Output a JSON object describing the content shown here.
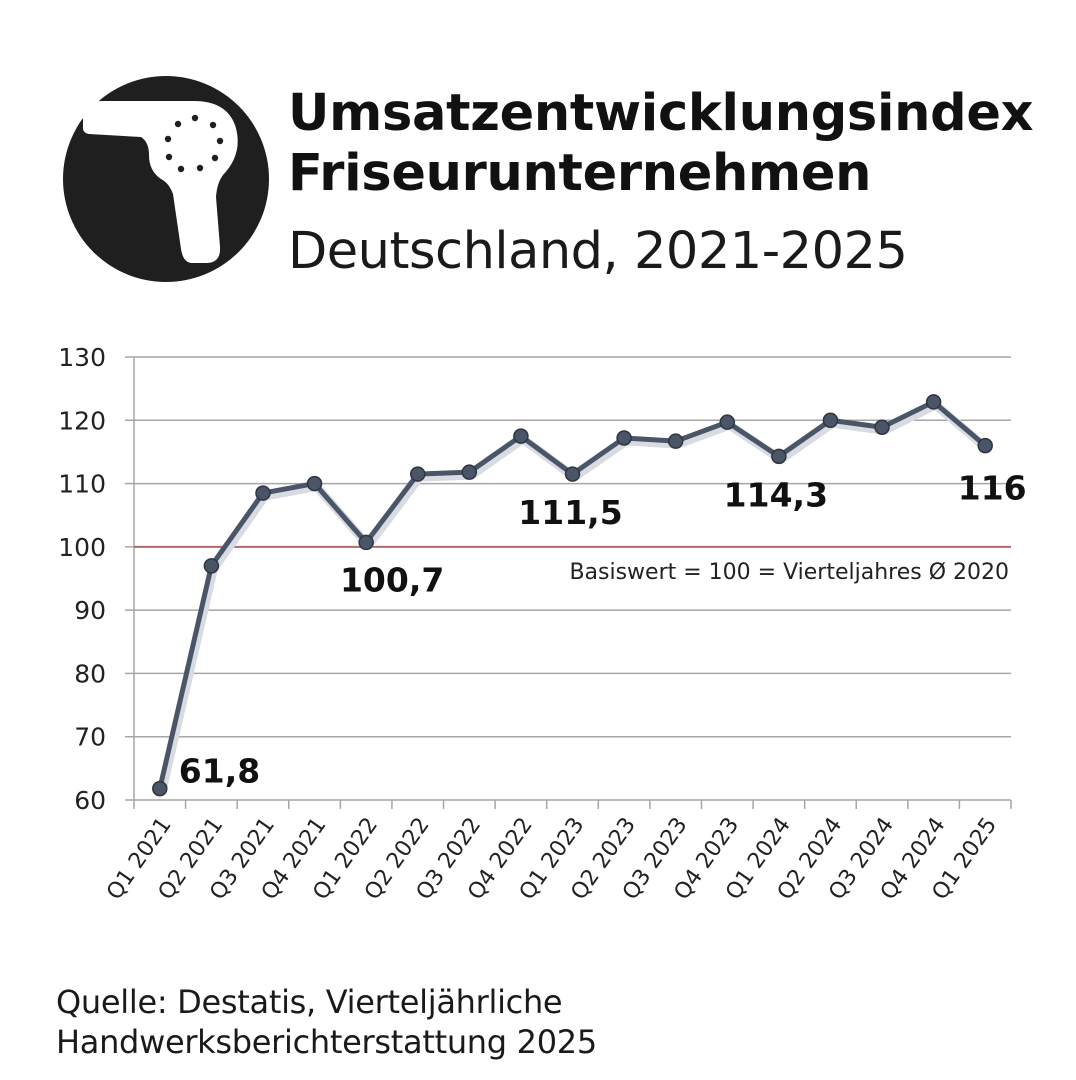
{
  "header": {
    "title_line1": "Umsatzentwicklungsindex",
    "title_line2": "Friseurunternehmen",
    "subtitle": "Deutschland, 2021-2025",
    "logo_icon": "hair-dryer-icon"
  },
  "source": {
    "line1": "Quelle: Destatis, Vierteljährliche",
    "line2": "Handwerksberichterstattung 2025"
  },
  "colors": {
    "line": "#4a5568",
    "baseline": "#b56a6a",
    "grid": "#a6a6a6",
    "logo": "#1f1f1f"
  },
  "chart_data": {
    "type": "line",
    "categories": [
      "Q1 2021",
      "Q2 2021",
      "Q3 2021",
      "Q4 2021",
      "Q1 2022",
      "Q2 2022",
      "Q3 2022",
      "Q4 2022",
      "Q1 2023",
      "Q2 2023",
      "Q3 2023",
      "Q4 2023",
      "Q1 2024",
      "Q2 2024",
      "Q3 2024",
      "Q4 2024",
      "Q1 2025"
    ],
    "series": [
      {
        "values": [
          61.8,
          97.0,
          108.5,
          110.0,
          100.7,
          111.5,
          111.8,
          117.5,
          111.5,
          117.2,
          116.7,
          119.7,
          114.3,
          120.0,
          118.9,
          122.9,
          116.0
        ]
      }
    ],
    "ylim": [
      60,
      130
    ],
    "yticks": [
      60,
      70,
      80,
      90,
      100,
      110,
      120,
      130
    ],
    "grid": true,
    "data_labels": [
      {
        "index": 0,
        "text": "61,8"
      },
      {
        "index": 4,
        "text": "100,7"
      },
      {
        "index": 8,
        "text": "111,5"
      },
      {
        "index": 12,
        "text": "114,3"
      },
      {
        "index": 16,
        "text": "116"
      }
    ],
    "reference_line": {
      "value": 100,
      "label": "Basiswert = 100 = Vierteljahres Ø 2020"
    }
  }
}
